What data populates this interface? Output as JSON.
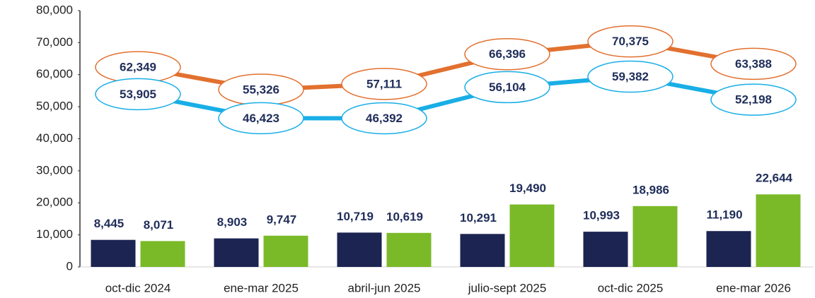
{
  "chart_data": {
    "type": "combo",
    "categories": [
      "oct-dic 2024",
      "ene-mar 2025",
      "abril-jun 2025",
      "julio-sept 2025",
      "oct-dic 2025",
      "ene-mar 2026"
    ],
    "series": [
      {
        "type": "bar",
        "color": "#1c2451",
        "values": [
          8445,
          8903,
          10719,
          10291,
          10993,
          11190
        ],
        "value_labels": [
          "8,445",
          "8,903",
          "10,719",
          "10,291",
          "10,993",
          "11,190"
        ]
      },
      {
        "type": "bar",
        "color": "#7aba28",
        "values": [
          8071,
          9747,
          10619,
          19490,
          18986,
          22644
        ],
        "value_labels": [
          "8,071",
          "9,747",
          "10,619",
          "19,490",
          "18,986",
          "22,644"
        ]
      },
      {
        "type": "line",
        "color": "#e2702f",
        "values": [
          62349,
          55326,
          57111,
          66396,
          70375,
          63388
        ],
        "value_labels": [
          "62,349",
          "55,326",
          "57,111",
          "66,396",
          "70,375",
          "63,388"
        ]
      },
      {
        "type": "line",
        "color": "#19aee6",
        "values": [
          53905,
          46423,
          46392,
          56104,
          59382,
          52198
        ],
        "value_labels": [
          "53,905",
          "46,423",
          "46,392",
          "56,104",
          "59,382",
          "52,198"
        ]
      }
    ],
    "ylim": [
      0,
      80000
    ],
    "yticks": [
      0,
      {
        "value": 10000,
        "label": "10,000"
      },
      {
        "value": 20000,
        "label": "20,000"
      },
      {
        "value": 30000,
        "label": "30,000"
      },
      {
        "value": 40000,
        "label": "40,000"
      },
      {
        "value": 50000,
        "label": "50,000"
      },
      {
        "value": 60000,
        "label": "60,000"
      },
      {
        "value": 70000,
        "label": "70,000"
      },
      {
        "value": 80000,
        "label": "80,000"
      }
    ]
  }
}
